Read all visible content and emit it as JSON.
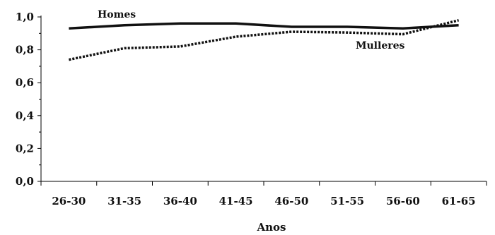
{
  "chart_data": {
    "type": "line",
    "categories": [
      "26-30",
      "31-35",
      "36-40",
      "41-45",
      "46-50",
      "51-55",
      "56-60",
      "61-65"
    ],
    "x": [
      1,
      2,
      3,
      4,
      5,
      6,
      7,
      8
    ],
    "series": [
      {
        "name": "Homes",
        "line_style": "solid",
        "x": [
          1,
          2,
          3,
          4,
          5,
          6,
          7,
          8
        ],
        "values": [
          0.93,
          0.95,
          0.96,
          0.96,
          0.94,
          0.94,
          0.93,
          0.95
        ]
      },
      {
        "name": "Mulleres",
        "line_style": "dotted",
        "x": [
          1,
          2,
          3,
          4,
          5,
          6,
          7,
          8
        ],
        "values": [
          0.74,
          0.81,
          0.82,
          0.88,
          0.91,
          0.905,
          0.895,
          0.98
        ]
      }
    ],
    "xlabel": "Anos",
    "ylabel": "",
    "ylim": [
      0,
      1
    ],
    "yticks": [
      "0,0",
      "0,2",
      "0,4",
      "0,6",
      "0,8",
      "1,0"
    ],
    "ytick_values": [
      0,
      0.2,
      0.4,
      0.6,
      0.8,
      1.0
    ],
    "grid": false,
    "legend": "inline labels",
    "colors": {
      "lines": "#111111",
      "axis": "#000000"
    }
  }
}
